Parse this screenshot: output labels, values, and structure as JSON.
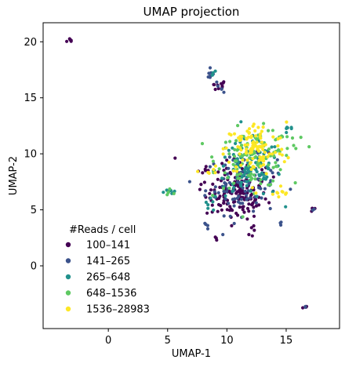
{
  "chart_data": {
    "type": "scatter",
    "title": "UMAP projection",
    "xlabel": "UMAP-1",
    "ylabel": "UMAP-2",
    "xlim": [
      -5.5,
      19.5
    ],
    "ylim": [
      -5.6,
      21.7
    ],
    "xticks": [
      0,
      5,
      10,
      15
    ],
    "yticks": [
      0,
      5,
      10,
      15,
      20
    ],
    "grid": false,
    "legend": {
      "title": "#Reads / cell",
      "placement": "lower-left"
    },
    "series": [
      {
        "name": "100–141",
        "color": "#440154",
        "clusters": [
          {
            "cx": -3.2,
            "cy": 20.1,
            "sx": 0.15,
            "sy": 0.12,
            "n": 6
          },
          {
            "cx": 9.3,
            "cy": 16.1,
            "sx": 0.35,
            "sy": 0.25,
            "n": 10
          },
          {
            "cx": 10.8,
            "cy": 6.2,
            "sx": 1.3,
            "sy": 1.0,
            "n": 120
          },
          {
            "cx": 11.2,
            "cy": 8.0,
            "sx": 1.6,
            "sy": 1.4,
            "n": 40
          },
          {
            "cx": 9.0,
            "cy": 2.5,
            "sx": 0.15,
            "sy": 0.1,
            "n": 3
          },
          {
            "cx": 12.2,
            "cy": 3.2,
            "sx": 0.25,
            "sy": 0.4,
            "n": 5
          },
          {
            "cx": 16.5,
            "cy": -3.6,
            "sx": 0.1,
            "sy": 0.07,
            "n": 3
          },
          {
            "cx": 17.3,
            "cy": 5.1,
            "sx": 0.15,
            "sy": 0.1,
            "n": 3
          },
          {
            "cx": 8.0,
            "cy": 8.4,
            "sx": 0.3,
            "sy": 0.2,
            "n": 5
          }
        ]
      },
      {
        "name": "141–265",
        "color": "#3b528b",
        "clusters": [
          {
            "cx": 8.6,
            "cy": 17.0,
            "sx": 0.2,
            "sy": 0.3,
            "n": 8
          },
          {
            "cx": 9.6,
            "cy": 15.8,
            "sx": 0.2,
            "sy": 0.2,
            "n": 4
          },
          {
            "cx": 11.2,
            "cy": 7.2,
            "sx": 1.5,
            "sy": 1.3,
            "n": 90
          },
          {
            "cx": 8.2,
            "cy": 3.6,
            "sx": 0.2,
            "sy": 0.2,
            "n": 4
          },
          {
            "cx": 17.4,
            "cy": 5.0,
            "sx": 0.1,
            "sy": 0.1,
            "n": 2
          },
          {
            "cx": 16.6,
            "cy": -3.7,
            "sx": 0.08,
            "sy": 0.06,
            "n": 2
          },
          {
            "cx": 14.5,
            "cy": 3.9,
            "sx": 0.15,
            "sy": 0.15,
            "n": 3
          }
        ]
      },
      {
        "name": "265–648",
        "color": "#21918c",
        "clusters": [
          {
            "cx": 11.8,
            "cy": 8.6,
            "sx": 1.4,
            "sy": 1.3,
            "n": 110
          },
          {
            "cx": 5.3,
            "cy": 6.7,
            "sx": 0.25,
            "sy": 0.15,
            "n": 8
          },
          {
            "cx": 8.8,
            "cy": 17.1,
            "sx": 0.15,
            "sy": 0.2,
            "n": 4
          },
          {
            "cx": 15.2,
            "cy": 12.1,
            "sx": 0.25,
            "sy": 0.2,
            "n": 6
          },
          {
            "cx": 8.5,
            "cy": 5.3,
            "sx": 0.4,
            "sy": 0.3,
            "n": 6
          }
        ]
      },
      {
        "name": "648–1536",
        "color": "#5ec962",
        "clusters": [
          {
            "cx": 12.2,
            "cy": 9.6,
            "sx": 1.5,
            "sy": 1.3,
            "n": 110
          },
          {
            "cx": 5.2,
            "cy": 6.6,
            "sx": 0.2,
            "sy": 0.15,
            "n": 5
          },
          {
            "cx": 14.6,
            "cy": 11.2,
            "sx": 0.7,
            "sy": 0.6,
            "n": 12
          }
        ]
      },
      {
        "name": "1536–28983",
        "color": "#fde725",
        "clusters": [
          {
            "cx": 12.4,
            "cy": 10.4,
            "sx": 1.3,
            "sy": 1.2,
            "n": 110
          },
          {
            "cx": 14.2,
            "cy": 6.4,
            "sx": 0.6,
            "sy": 0.4,
            "n": 10
          },
          {
            "cx": 8.4,
            "cy": 8.6,
            "sx": 0.4,
            "sy": 0.3,
            "n": 6
          }
        ]
      }
    ]
  }
}
